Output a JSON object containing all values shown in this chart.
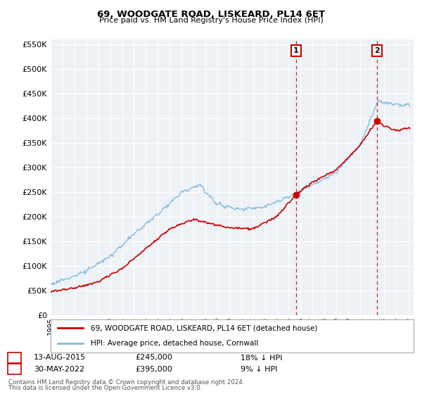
{
  "title": "69, WOODGATE ROAD, LISKEARD, PL14 6ET",
  "subtitle": "Price paid vs. HM Land Registry's House Price Index (HPI)",
  "legend_line1": "69, WOODGATE ROAD, LISKEARD, PL14 6ET (detached house)",
  "legend_line2": "HPI: Average price, detached house, Cornwall",
  "sale1_date": "13-AUG-2015",
  "sale1_price": "£245,000",
  "sale1_hpi": "18% ↓ HPI",
  "sale2_date": "30-MAY-2022",
  "sale2_price": "£395,000",
  "sale2_hpi": "9% ↓ HPI",
  "footnote1": "Contains HM Land Registry data © Crown copyright and database right 2024.",
  "footnote2": "This data is licensed under the Open Government Licence v3.0.",
  "hpi_color": "#88bbdd",
  "property_color": "#cc0000",
  "vline_color": "#cc0000",
  "background_color": "#eef2f7",
  "ylim": [
    0,
    560000
  ],
  "yticks": [
    0,
    50000,
    100000,
    150000,
    200000,
    250000,
    300000,
    350000,
    400000,
    450000,
    500000,
    550000
  ],
  "sale1_year": 2015.62,
  "sale1_value": 245000,
  "sale2_year": 2022.42,
  "sale2_value": 395000,
  "xmin": 1995,
  "xmax": 2025.5
}
